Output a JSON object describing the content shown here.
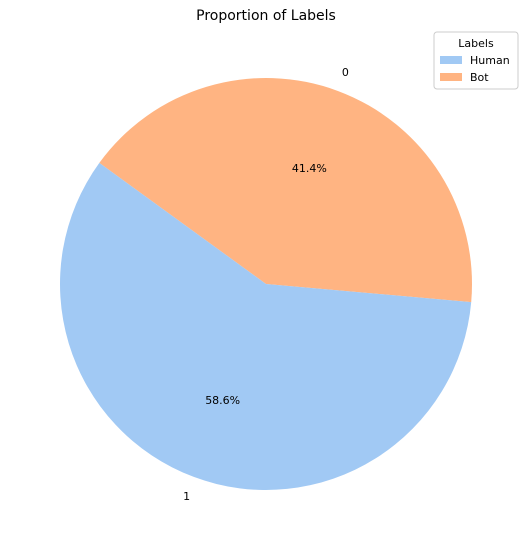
{
  "chart_data": {
    "type": "pie",
    "title": "Proportion of Labels",
    "slices": [
      {
        "category": "0",
        "legend": "Bot",
        "percent": 41.4,
        "percent_label": "41.4%",
        "color": "#ffb482"
      },
      {
        "category": "1",
        "legend": "Human",
        "percent": 58.6,
        "percent_label": "58.6%",
        "color": "#a1c9f4"
      }
    ],
    "start_angle_deg": 144,
    "legend": {
      "title": "Labels",
      "placement": "top-right",
      "entries": [
        {
          "label": "Human",
          "color": "#a1c9f4"
        },
        {
          "label": "Bot",
          "color": "#ffb482"
        }
      ]
    }
  }
}
